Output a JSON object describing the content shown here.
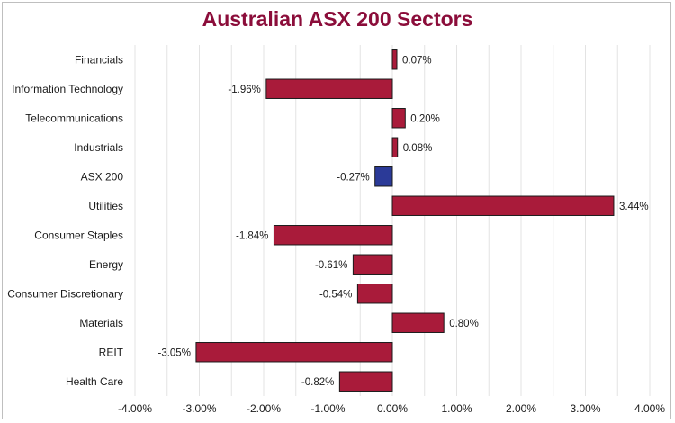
{
  "chart_data": {
    "type": "bar",
    "orientation": "horizontal",
    "title": "Australian ASX 200 Sectors",
    "xlabel": "",
    "ylabel": "",
    "categories": [
      "Financials",
      "Information Technology",
      "Telecommunications",
      "Industrials",
      "ASX 200",
      "Utilities",
      "Consumer Staples",
      "Energy",
      "Consumer Discretionary",
      "Materials",
      "REIT",
      "Health Care"
    ],
    "values": [
      0.07,
      -1.96,
      0.2,
      0.08,
      -0.27,
      3.44,
      -1.84,
      -0.61,
      -0.54,
      0.8,
      -3.05,
      -0.82
    ],
    "value_labels": [
      "0.07%",
      "-1.96%",
      "0.20%",
      "0.08%",
      "-0.27%",
      "3.44%",
      "-1.84%",
      "-0.61%",
      "-0.54%",
      "0.80%",
      "-3.05%",
      "-0.82%"
    ],
    "xlim": [
      -4,
      4
    ],
    "xticks": [
      -4,
      -3,
      -2,
      -1,
      0,
      1,
      2,
      3,
      4
    ],
    "xtick_labels": [
      "-4.00%",
      "-3.00%",
      "-2.00%",
      "-1.00%",
      "0.00%",
      "1.00%",
      "2.00%",
      "3.00%",
      "4.00%"
    ],
    "grid": true,
    "legend": "none",
    "colors": {
      "sector": "#a91b3a",
      "index": "#2b3a98",
      "title": "#8b0d3a",
      "grid": "#e3e3e3",
      "bar_edge": "#1a1a1a"
    },
    "highlight_category": "ASX 200"
  }
}
